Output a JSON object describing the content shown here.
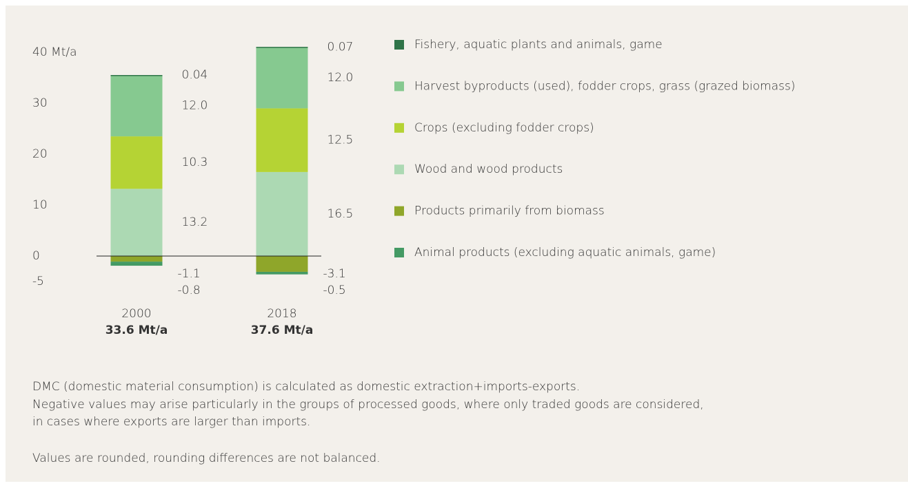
{
  "chart_data": {
    "type": "stacked_bar",
    "categories": [
      "2000",
      "2018"
    ],
    "category_totals": [
      "33.6 Mt/a",
      "37.6 Mt/a"
    ],
    "series": [
      {
        "name": "Fishery, aquatic plants and animals, game",
        "color": "#2f7448",
        "values": [
          0.04,
          0.07
        ],
        "value_labels": [
          "0.04",
          "0.07"
        ]
      },
      {
        "name": "Harvest byproducts (used), fodder crops, grass (grazed biomass)",
        "color": "#86c990",
        "values": [
          12.0,
          12.0
        ],
        "value_labels": [
          "12.0",
          "12.0"
        ]
      },
      {
        "name": "Crops (excluding fodder crops)",
        "color": "#b5d334",
        "values": [
          10.3,
          12.5
        ],
        "value_labels": [
          "10.3",
          "12.5"
        ]
      },
      {
        "name": "Wood and wood products",
        "color": "#acd9b3",
        "values": [
          13.2,
          16.5
        ],
        "value_labels": [
          "13.2",
          "16.5"
        ]
      },
      {
        "name": "Products primarily from biomass",
        "color": "#8fa62a",
        "values": [
          -1.1,
          -3.1
        ],
        "value_labels": [
          "-1.1",
          "-3.1"
        ]
      },
      {
        "name": "Animal products (excluding aquatic animals, game)",
        "color": "#449a64",
        "values": [
          -0.8,
          -0.5
        ],
        "value_labels": [
          "-0.8",
          "-0.5"
        ]
      }
    ],
    "ylim": [
      -5,
      40
    ],
    "yticks": [
      -5,
      0,
      10,
      20,
      30,
      {
        "value": 40,
        "label": "40 Mt/a"
      }
    ],
    "notes": [
      "DMC (domestic material consumption) is calculated as domestic extraction+imports-exports.",
      "Negative values may arise particularly in the groups of processed goods, where only traded goods are considered,",
      "in cases where exports are larger than imports.",
      "Values are rounded, rounding differences are not balanced."
    ]
  }
}
